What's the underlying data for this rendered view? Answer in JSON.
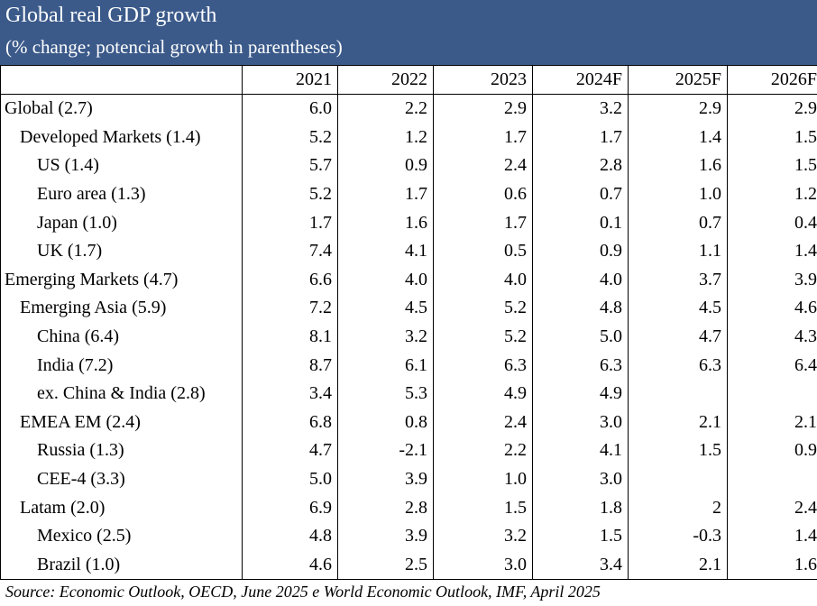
{
  "title": "Global real GDP growth",
  "subtitle": "(% change; potencial growth in parentheses)",
  "columns": [
    "2021",
    "2022",
    "2023",
    "2024F",
    "2025F",
    "2026F"
  ],
  "rows": [
    {
      "label": "Global (2.7)",
      "level": 0,
      "values": [
        "6.0",
        "2.2",
        "2.9",
        "3.2",
        "2.9",
        "2.9"
      ]
    },
    {
      "label": "Developed Markets (1.4)",
      "level": 1,
      "values": [
        "5.2",
        "1.2",
        "1.7",
        "1.7",
        "1.4",
        "1.5"
      ]
    },
    {
      "label": "US (1.4)",
      "level": 2,
      "values": [
        "5.7",
        "0.9",
        "2.4",
        "2.8",
        "1.6",
        "1.5"
      ]
    },
    {
      "label": "Euro area (1.3)",
      "level": 2,
      "values": [
        "5.2",
        "1.7",
        "0.6",
        "0.7",
        "1.0",
        "1.2"
      ]
    },
    {
      "label": "Japan (1.0)",
      "level": 2,
      "values": [
        "1.7",
        "1.6",
        "1.7",
        "0.1",
        "0.7",
        "0.4"
      ]
    },
    {
      "label": "UK (1.7)",
      "level": 2,
      "values": [
        "7.4",
        "4.1",
        "0.5",
        "0.9",
        "1.1",
        "1.4"
      ]
    },
    {
      "label": "Emerging Markets (4.7)",
      "level": 0,
      "values": [
        "6.6",
        "4.0",
        "4.0",
        "4.0",
        "3.7",
        "3.9"
      ]
    },
    {
      "label": "Emerging Asia (5.9)",
      "level": 1,
      "values": [
        "7.2",
        "4.5",
        "5.2",
        "4.8",
        "4.5",
        "4.6"
      ]
    },
    {
      "label": "China (6.4)",
      "level": 2,
      "values": [
        "8.1",
        "3.2",
        "5.2",
        "5.0",
        "4.7",
        "4.3"
      ]
    },
    {
      "label": "India (7.2)",
      "level": 2,
      "values": [
        "8.7",
        "6.1",
        "6.3",
        "6.3",
        "6.3",
        "6.4"
      ]
    },
    {
      "label": "ex. China & India (2.8)",
      "level": 2,
      "values": [
        "3.4",
        "5.3",
        "4.9",
        "4.9",
        "",
        ""
      ]
    },
    {
      "label": "EMEA EM (2.4)",
      "level": 1,
      "values": [
        "6.8",
        "0.8",
        "2.4",
        "3.0",
        "2.1",
        "2.1"
      ]
    },
    {
      "label": "Russia (1.3)",
      "level": 2,
      "values": [
        "4.7",
        "-2.1",
        "2.2",
        "4.1",
        "1.5",
        "0.9"
      ]
    },
    {
      "label": "CEE-4 (3.3)",
      "level": 2,
      "values": [
        "5.0",
        "3.9",
        "1.0",
        "3.0",
        "",
        ""
      ]
    },
    {
      "label": "Latam (2.0)",
      "level": 1,
      "values": [
        "6.9",
        "2.8",
        "1.5",
        "1.8",
        "2",
        "2.4"
      ]
    },
    {
      "label": "Mexico (2.5)",
      "level": 2,
      "values": [
        "4.8",
        "3.9",
        "3.2",
        "1.5",
        "-0.3",
        "1.4"
      ]
    },
    {
      "label": "Brazil (1.0)",
      "level": 2,
      "values": [
        "4.6",
        "2.5",
        "3.0",
        "3.4",
        "2.1",
        "1.6"
      ]
    }
  ],
  "source": "Source:  Economic Outlook, OECD, June 2025 e World Economic Outlook, IMF, April 2025",
  "colors": {
    "header_bg": "#3b5a8a",
    "header_text": "#ffffff"
  }
}
